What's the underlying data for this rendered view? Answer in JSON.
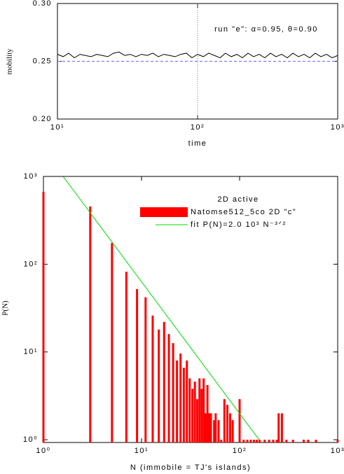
{
  "chart_data": [
    {
      "type": "line",
      "annotation": "run \"e\":  α=0.95,  θ=0.90",
      "xlabel": "time",
      "ylabel": "mobility",
      "xscale": "log",
      "xlim": [
        10,
        1000
      ],
      "xticks": [
        {
          "value": 10,
          "label": "10¹"
        },
        {
          "value": 100,
          "label": "10²"
        },
        {
          "value": 1000,
          "label": "10³"
        }
      ],
      "ylim": [
        0.2,
        0.3
      ],
      "yticks": [
        {
          "value": 0.2,
          "label": "0.20"
        },
        {
          "value": 0.25,
          "label": "0.25"
        },
        {
          "value": 0.3,
          "label": "0.30"
        }
      ],
      "reference_lines": {
        "x": 100,
        "y": 0.25,
        "color": "#6666ff"
      },
      "series": [
        {
          "color": "#000000",
          "x": [
            10,
            11,
            12,
            13.2,
            14.5,
            15.8,
            17.4,
            19.1,
            20.9,
            22.9,
            25.1,
            27.5,
            30.2,
            33.1,
            36.3,
            39.8,
            43.7,
            47.9,
            52.5,
            57.5,
            63.1,
            69.2,
            75.9,
            83.2,
            91.2,
            100,
            110,
            120,
            132,
            145,
            158,
            174,
            191,
            209,
            229,
            251,
            275,
            302,
            331,
            363,
            398,
            437,
            479,
            525,
            575,
            631,
            692,
            759,
            832,
            912,
            1000
          ],
          "values": [
            0.256,
            0.254,
            0.257,
            0.253,
            0.256,
            0.255,
            0.254,
            0.256,
            0.255,
            0.254,
            0.257,
            0.258,
            0.255,
            0.256,
            0.254,
            0.256,
            0.255,
            0.257,
            0.254,
            0.256,
            0.255,
            0.254,
            0.256,
            0.257,
            0.253,
            0.256,
            0.254,
            0.257,
            0.255,
            0.253,
            0.257,
            0.254,
            0.256,
            0.253,
            0.257,
            0.254,
            0.256,
            0.253,
            0.257,
            0.254,
            0.256,
            0.253,
            0.257,
            0.254,
            0.256,
            0.253,
            0.257,
            0.254,
            0.256,
            0.253,
            0.255
          ]
        }
      ]
    },
    {
      "type": "bar",
      "legend_title": "2D active",
      "xlabel": "N (immobile = TJ's islands)",
      "ylabel": "P(N)",
      "xscale": "log",
      "yscale": "log",
      "xlim": [
        1,
        1000
      ],
      "xticks": [
        {
          "value": 1,
          "label": "10⁰"
        },
        {
          "value": 10,
          "label": "10¹"
        },
        {
          "value": 100,
          "label": "10²"
        },
        {
          "value": 1000,
          "label": "10³"
        }
      ],
      "ylim": [
        0.93,
        1000
      ],
      "yticks": [
        {
          "value": 1,
          "label": "10⁰"
        },
        {
          "value": 10,
          "label": "10¹"
        },
        {
          "value": 100,
          "label": "10²"
        },
        {
          "value": 1000,
          "label": "10³"
        }
      ],
      "series": [
        {
          "name": "Natomse512_5co 2D \"c\"",
          "color": "#ff0000",
          "x": [
            1,
            3,
            5,
            7,
            9,
            11,
            13,
            15,
            17,
            19,
            21,
            23,
            25,
            27,
            29,
            31,
            33,
            35,
            37,
            39,
            41,
            43,
            45,
            47,
            49,
            51,
            55,
            57,
            61,
            65,
            70,
            75,
            80,
            85,
            100,
            110,
            120,
            130,
            140,
            150,
            160,
            180,
            200,
            220,
            240,
            250,
            270,
            300,
            350,
            450,
            500,
            600,
            1000
          ],
          "values": [
            668,
            455,
            175,
            82,
            52,
            42,
            26,
            18,
            22,
            16,
            12.6,
            8,
            9.6,
            6.6,
            8,
            5,
            3.8,
            4.6,
            2.9,
            5,
            3.8,
            5,
            2,
            4.2,
            2,
            2,
            1.67,
            2,
            1.67,
            1,
            2.9,
            2.5,
            2,
            1.67,
            2.9,
            1,
            1,
            1,
            1,
            1,
            1,
            1,
            1,
            1,
            1,
            2,
            2,
            1,
            1,
            1,
            1,
            1,
            1
          ]
        },
        {
          "name": "fit P(N)=2.0 10³ N⁻³ᐟ²",
          "type": "line",
          "color": "#00dd00",
          "x": [
            1.6,
            158
          ],
          "values": [
            988,
            1
          ]
        }
      ]
    }
  ]
}
